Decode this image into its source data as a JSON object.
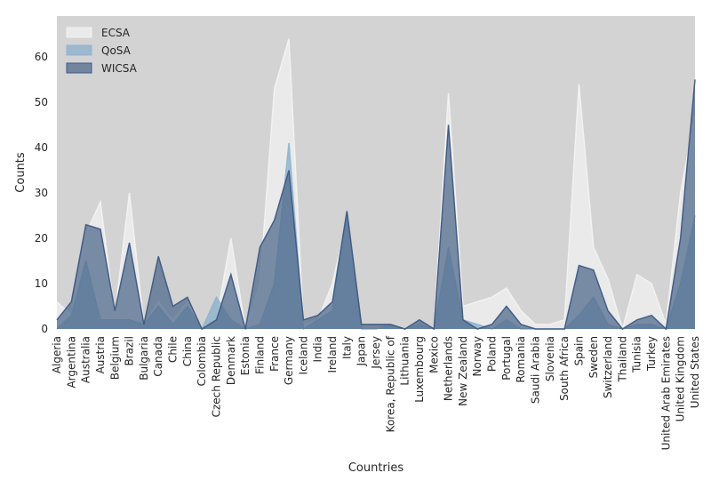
{
  "chart_data": {
    "type": "area",
    "title": "",
    "xlabel": "Countries",
    "ylabel": "Counts",
    "ylim": [
      0,
      69
    ],
    "yticks": [
      0,
      10,
      20,
      30,
      40,
      50,
      60
    ],
    "grid": false,
    "background": "#d3d3d3",
    "legend": {
      "position": "top-left"
    },
    "categories": [
      "Algeria",
      "Argentina",
      "Australia",
      "Austria",
      "Belgium",
      "Brazil",
      "Bulgaria",
      "Canada",
      "Chile",
      "China",
      "Colombia",
      "Czech Republic",
      "Denmark",
      "Estonia",
      "Finland",
      "France",
      "Germany",
      "Iceland",
      "India",
      "Ireland",
      "Italy",
      "Japan",
      "Jersey",
      "Korea, Republic of",
      "Lithuania",
      "Luxembourg",
      "Mexico",
      "Netherlands",
      "New Zealand",
      "Norway",
      "Poland",
      "Portugal",
      "Romania",
      "Saudi Arabia",
      "Slovenia",
      "South Africa",
      "Spain",
      "Sweden",
      "Switzerland",
      "Thailand",
      "Tunisia",
      "Turkey",
      "United Arab Emirates",
      "United Kingdom",
      "United States"
    ],
    "series": [
      {
        "name": "ECSA",
        "fill": "#ededee",
        "line": "#f2f2f2",
        "opacity": 0.85,
        "values": [
          6,
          3,
          21,
          28,
          3,
          30,
          1,
          6,
          2,
          6,
          0,
          2,
          20,
          0,
          10,
          53,
          64,
          1,
          2,
          10,
          24,
          0,
          0,
          1,
          0,
          1,
          0,
          52,
          5,
          6,
          7,
          9,
          4,
          1,
          1,
          2,
          54,
          18,
          11,
          0,
          12,
          10,
          1,
          30,
          47
        ]
      },
      {
        "name": "QoSA",
        "fill": "#8fb1cc",
        "line": "#90b5d0",
        "opacity": 0.8,
        "values": [
          0,
          3,
          15,
          2,
          2,
          2,
          1,
          5,
          1,
          5,
          0,
          7,
          2,
          0,
          1,
          10,
          41,
          0,
          2,
          4,
          25,
          0,
          0,
          1,
          0,
          1,
          0,
          18,
          2,
          1,
          0,
          2,
          0,
          0,
          0,
          0,
          3,
          7,
          1,
          0,
          1,
          1,
          0,
          10,
          25
        ]
      },
      {
        "name": "WICSA",
        "fill": "#526b8c",
        "line": "#3e5a84",
        "opacity": 0.75,
        "values": [
          2,
          6,
          23,
          22,
          4,
          19,
          1,
          16,
          5,
          7,
          0,
          2,
          12,
          0,
          18,
          24,
          35,
          2,
          3,
          6,
          26,
          1,
          1,
          1,
          0,
          2,
          0,
          45,
          2,
          0,
          1,
          5,
          1,
          0,
          0,
          0,
          14,
          13,
          4,
          0,
          2,
          3,
          0,
          20,
          55
        ]
      }
    ]
  }
}
